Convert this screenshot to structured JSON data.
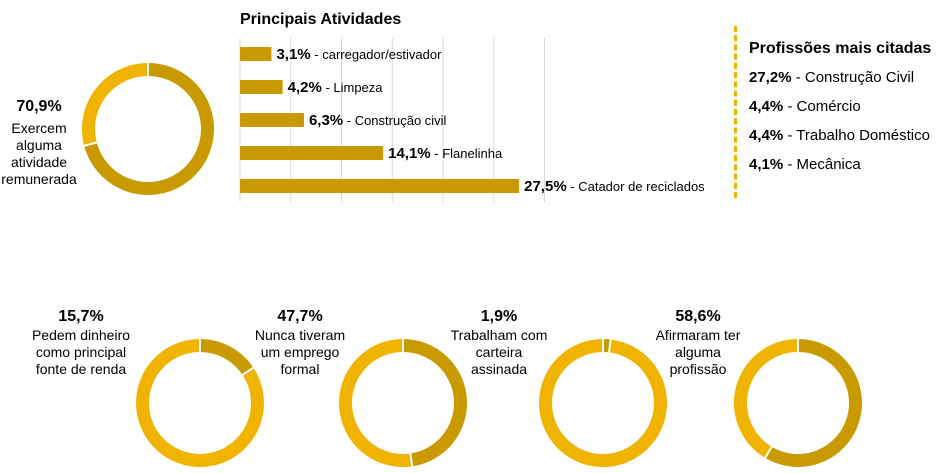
{
  "colors": {
    "dark": "#C99A00",
    "light": "#F0B400",
    "grid": "#d9d9d9"
  },
  "donut_top": {
    "value": "70,9%",
    "lines": [
      "Exercem",
      "alguma",
      "atividade",
      "remunerada"
    ]
  },
  "bar_title": "Principais Atividades",
  "professions": {
    "title": "Profissões mais citadas",
    "items": [
      {
        "value": "27,2%",
        "label": " - Construção Civil"
      },
      {
        "value": "4,4%",
        "label": " - Comércio"
      },
      {
        "value": "4,4%",
        "label": " - Trabalho Doméstico"
      },
      {
        "value": "4,1%",
        "label": " - Mecânica"
      }
    ]
  },
  "bottom_stats": [
    {
      "value": "15,7%",
      "lines": [
        "Pedem dinheiro",
        "como principal",
        "fonte de renda"
      ]
    },
    {
      "value": "47,7%",
      "lines": [
        "Nunca tiveram",
        "um emprego",
        "formal"
      ]
    },
    {
      "value": "1,9%",
      "lines": [
        "Trabalham com",
        "carteira",
        "assinada"
      ]
    },
    {
      "value": "58,6%",
      "lines": [
        "Afirmaram ter",
        "alguma",
        "profissão"
      ]
    }
  ],
  "chart_data": [
    {
      "type": "pie",
      "labels": [
        "Exercem alguma atividade remunerada",
        ""
      ],
      "values": [
        70.9,
        29.1
      ]
    },
    {
      "type": "bar",
      "title": "Principais Atividades",
      "orientation": "horizontal",
      "categories": [
        "carregador/estivador",
        "Limpeza",
        "Construção civil",
        "Flanelinha",
        "Catador de reciclados"
      ],
      "values": [
        3.1,
        4.2,
        6.3,
        14.1,
        27.5
      ],
      "value_labels": [
        "3,1%",
        "4,2%",
        "6,3%",
        "14,1%",
        "27,5%"
      ],
      "grid": true
    },
    {
      "type": "pie",
      "labels": [
        "Pedem dinheiro como principal fonte de renda",
        ""
      ],
      "values": [
        15.7,
        84.3
      ]
    },
    {
      "type": "pie",
      "labels": [
        "Nunca tiveram um emprego formal",
        ""
      ],
      "values": [
        47.7,
        52.3
      ]
    },
    {
      "type": "pie",
      "labels": [
        "Trabalham com carteira assinada",
        ""
      ],
      "values": [
        1.9,
        98.1
      ]
    },
    {
      "type": "pie",
      "labels": [
        "Afirmaram ter alguma profissão",
        ""
      ],
      "values": [
        58.6,
        41.4
      ]
    }
  ]
}
